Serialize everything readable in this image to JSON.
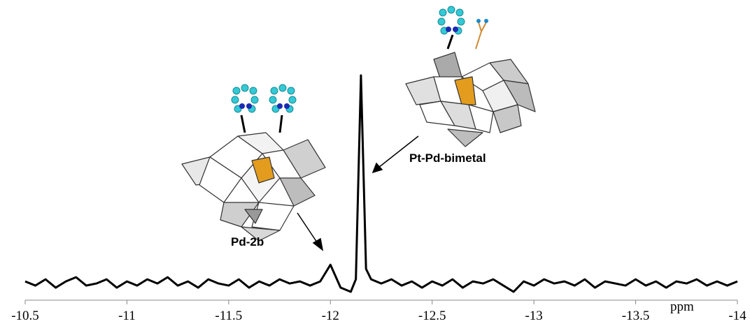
{
  "chart_data": {
    "type": "line",
    "x_label": "ppm",
    "annotations": [
      "Pd-2b",
      "Pt-Pd-bimetal"
    ],
    "xlim": [
      -10.5,
      -14
    ],
    "xticks": [
      -10.5,
      -11,
      -11.5,
      -12,
      -12.5,
      -13,
      -13.5,
      -14
    ],
    "color": "#000000",
    "x": [
      -10.5,
      -10.55,
      -10.6,
      -10.65,
      -10.7,
      -10.75,
      -10.8,
      -10.85,
      -10.9,
      -10.95,
      -11,
      -11.05,
      -11.1,
      -11.15,
      -11.2,
      -11.25,
      -11.3,
      -11.35,
      -11.4,
      -11.45,
      -11.5,
      -11.55,
      -11.6,
      -11.65,
      -11.7,
      -11.75,
      -11.8,
      -11.85,
      -11.9,
      -11.95,
      -12,
      -12.05,
      -12.1,
      -12.125,
      -12.15,
      -12.175,
      -12.2,
      -12.25,
      -12.3,
      -12.35,
      -12.4,
      -12.45,
      -12.5,
      -12.55,
      -12.6,
      -12.65,
      -12.7,
      -12.75,
      -12.8,
      -12.85,
      -12.9,
      -12.95,
      -13,
      -13.05,
      -13.1,
      -13.15,
      -13.2,
      -13.25,
      -13.3,
      -13.35,
      -13.4,
      -13.45,
      -13.5,
      -13.55,
      -13.6,
      -13.65,
      -13.7,
      -13.75,
      -13.8,
      -13.85,
      -13.9,
      -13.95,
      -14
    ],
    "values": [
      1,
      -1,
      2,
      -2,
      1,
      3,
      -1,
      0,
      2,
      -2,
      1,
      -1,
      2,
      0,
      3,
      -1,
      1,
      -2,
      2,
      0,
      -1,
      2,
      -2,
      1,
      -1,
      2,
      0,
      1,
      -1,
      1,
      9,
      -2,
      -4,
      2,
      100,
      7,
      2,
      0,
      2,
      -1,
      1,
      -2,
      1,
      -1,
      2,
      -2,
      1,
      0,
      2,
      -1,
      -4,
      1,
      -1,
      2,
      0,
      1,
      -1,
      2,
      -2,
      1,
      0,
      -1,
      2,
      -1,
      1,
      -2,
      1,
      0,
      2,
      -1,
      1,
      -1,
      1
    ]
  }
}
